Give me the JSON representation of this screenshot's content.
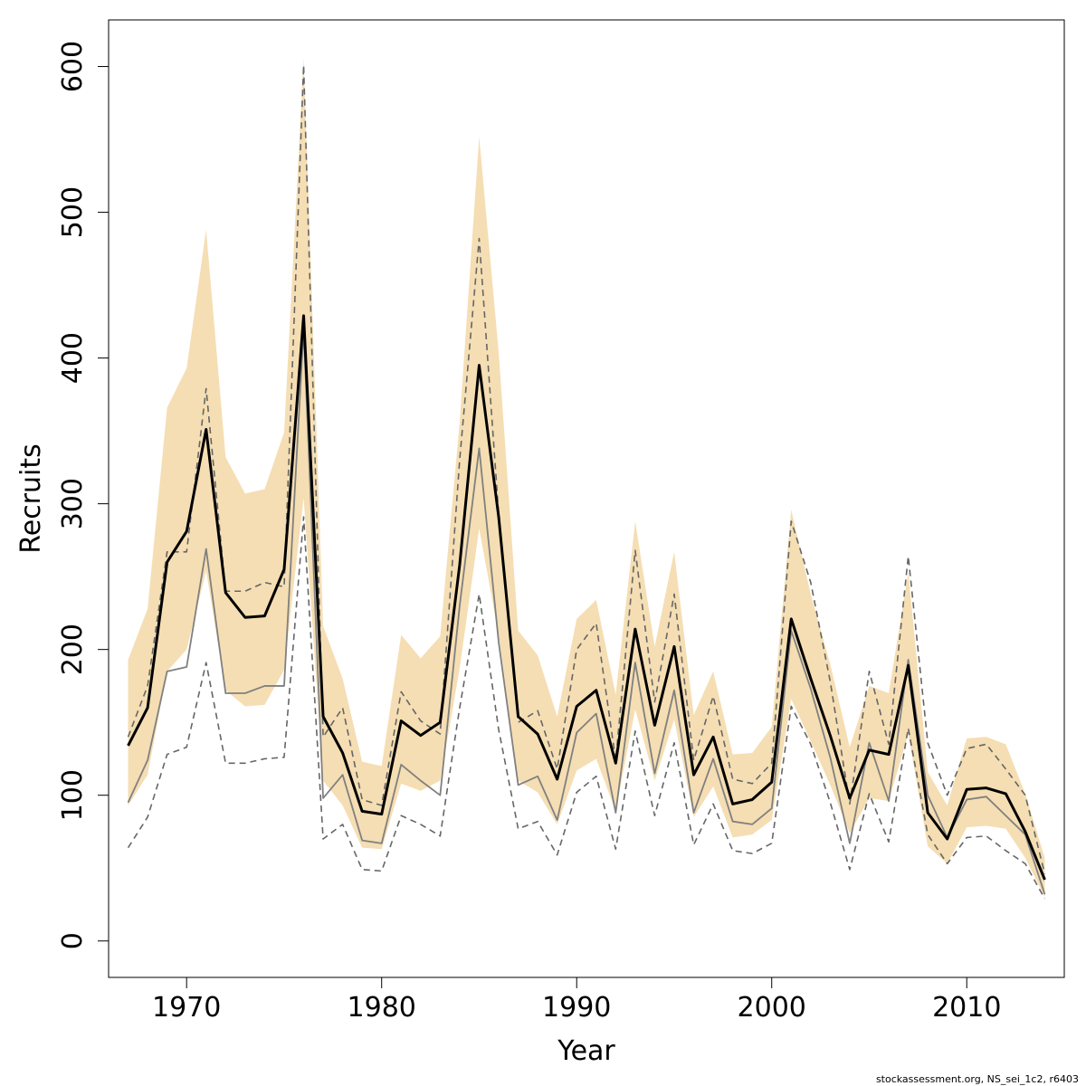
{
  "chart_data": {
    "type": "line",
    "xlabel": "Year",
    "ylabel": "Recruits",
    "xlim": [
      1966,
      2015
    ],
    "ylim": [
      -25,
      632
    ],
    "x_ticks": [
      1970,
      1980,
      1990,
      2000,
      2010
    ],
    "y_ticks": [
      0,
      100,
      200,
      300,
      400,
      500,
      600
    ],
    "grid": false,
    "legend": "none",
    "credit": "stockassessment.org, NS_sei_1c2, r6403",
    "colors": {
      "band": "#f5deb3",
      "estimate": "#000000",
      "alt_estimate": "#808080",
      "alt_bounds": "#666666"
    },
    "x": [
      1967,
      1968,
      1969,
      1970,
      1971,
      1972,
      1973,
      1974,
      1975,
      1976,
      1977,
      1978,
      1979,
      1980,
      1981,
      1982,
      1983,
      1984,
      1985,
      1986,
      1987,
      1988,
      1989,
      1990,
      1991,
      1992,
      1993,
      1994,
      1995,
      1996,
      1997,
      1998,
      1999,
      2000,
      2001,
      2002,
      2003,
      2004,
      2005,
      2006,
      2007,
      2008,
      2009,
      2010,
      2011,
      2012,
      2013,
      2014
    ],
    "series": [
      {
        "role": "estimate",
        "values": [
          134,
          160,
          260,
          281,
          351,
          239,
          222,
          223,
          255,
          429,
          154,
          129,
          89,
          87,
          151,
          141,
          150,
          258,
          395,
          291,
          154,
          142,
          111,
          161,
          172,
          122,
          214,
          148,
          202,
          114,
          140,
          94,
          97,
          109,
          221,
          180,
          141,
          98,
          131,
          128,
          189,
          88,
          70,
          104,
          105,
          101,
          75,
          42
        ]
      },
      {
        "role": "band_upper",
        "values": [
          193,
          228,
          366,
          393,
          488,
          332,
          307,
          310,
          349,
          606,
          216,
          180,
          123,
          120,
          210,
          194,
          209,
          356,
          552,
          404,
          213,
          196,
          154,
          221,
          234,
          169,
          288,
          202,
          267,
          155,
          185,
          128,
          129,
          147,
          296,
          238,
          190,
          133,
          175,
          170,
          253,
          116,
          93,
          139,
          140,
          135,
          101,
          57
        ]
      },
      {
        "role": "band_lower",
        "values": [
          93,
          114,
          185,
          200,
          254,
          172,
          161,
          162,
          186,
          304,
          110,
          93,
          64,
          63,
          108,
          103,
          110,
          187,
          283,
          210,
          110,
          102,
          80,
          117,
          125,
          89,
          159,
          110,
          152,
          85,
          106,
          71,
          73,
          83,
          166,
          137,
          107,
          74,
          98,
          96,
          142,
          65,
          53,
          78,
          79,
          77,
          57,
          30
        ]
      },
      {
        "role": "alt_estimate",
        "values": [
          95,
          124,
          185,
          188,
          269,
          170,
          170,
          175,
          175,
          420,
          98,
          114,
          69,
          67,
          121,
          110,
          100,
          230,
          338,
          205,
          107,
          113,
          83,
          143,
          156,
          88,
          191,
          115,
          172,
          88,
          125,
          82,
          80,
          91,
          213,
          173,
          126,
          67,
          136,
          96,
          193,
          100,
          71,
          97,
          99,
          86,
          73,
          32
        ]
      },
      {
        "role": "alt_upper",
        "values": [
          140,
          175,
          267,
          267,
          379,
          240,
          240,
          246,
          243,
          601,
          140,
          160,
          97,
          93,
          171,
          151,
          142,
          330,
          482,
          293,
          150,
          158,
          118,
          200,
          218,
          124,
          268,
          164,
          238,
          124,
          168,
          111,
          108,
          122,
          288,
          246,
          178,
          94,
          185,
          135,
          264,
          136,
          100,
          132,
          135,
          118,
          100,
          46
        ]
      },
      {
        "role": "alt_lower",
        "values": [
          64,
          85,
          128,
          133,
          191,
          122,
          122,
          125,
          126,
          291,
          70,
          80,
          49,
          48,
          86,
          80,
          72,
          160,
          238,
          145,
          77,
          82,
          59,
          102,
          113,
          63,
          144,
          86,
          136,
          66,
          94,
          62,
          60,
          67,
          161,
          135,
          95,
          49,
          101,
          68,
          146,
          73,
          53,
          71,
          72,
          62,
          53,
          29
        ]
      }
    ]
  }
}
